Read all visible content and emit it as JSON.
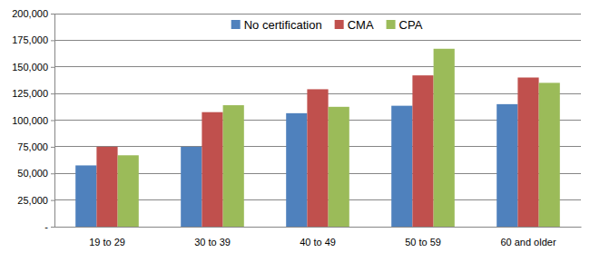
{
  "chart_data": {
    "type": "bar",
    "categories": [
      "19 to 29",
      "30 to 39",
      "40 to 49",
      "50 to 59",
      "60 and older"
    ],
    "series": [
      {
        "name": "No certification",
        "color": "#4f81bd",
        "values": [
          57500,
          75000,
          106500,
          113500,
          115000
        ]
      },
      {
        "name": "CMA",
        "color": "#c0504d",
        "values": [
          75000,
          107500,
          129000,
          142000,
          140000
        ]
      },
      {
        "name": "CPA",
        "color": "#9bbb59",
        "values": [
          67000,
          114000,
          112500,
          167000,
          135000
        ]
      }
    ],
    "ylim": [
      0,
      200000
    ],
    "yticks": [
      {
        "value": 0,
        "label": "-"
      },
      {
        "value": 25000,
        "label": "25,000"
      },
      {
        "value": 50000,
        "label": "50,000"
      },
      {
        "value": 75000,
        "label": "75,000"
      },
      {
        "value": 100000,
        "label": "100,000"
      },
      {
        "value": 125000,
        "label": "125,000"
      },
      {
        "value": 150000,
        "label": "150,000"
      },
      {
        "value": 175000,
        "label": "175,000"
      },
      {
        "value": 200000,
        "label": "200,000"
      }
    ],
    "grid": true,
    "legend": "top"
  }
}
